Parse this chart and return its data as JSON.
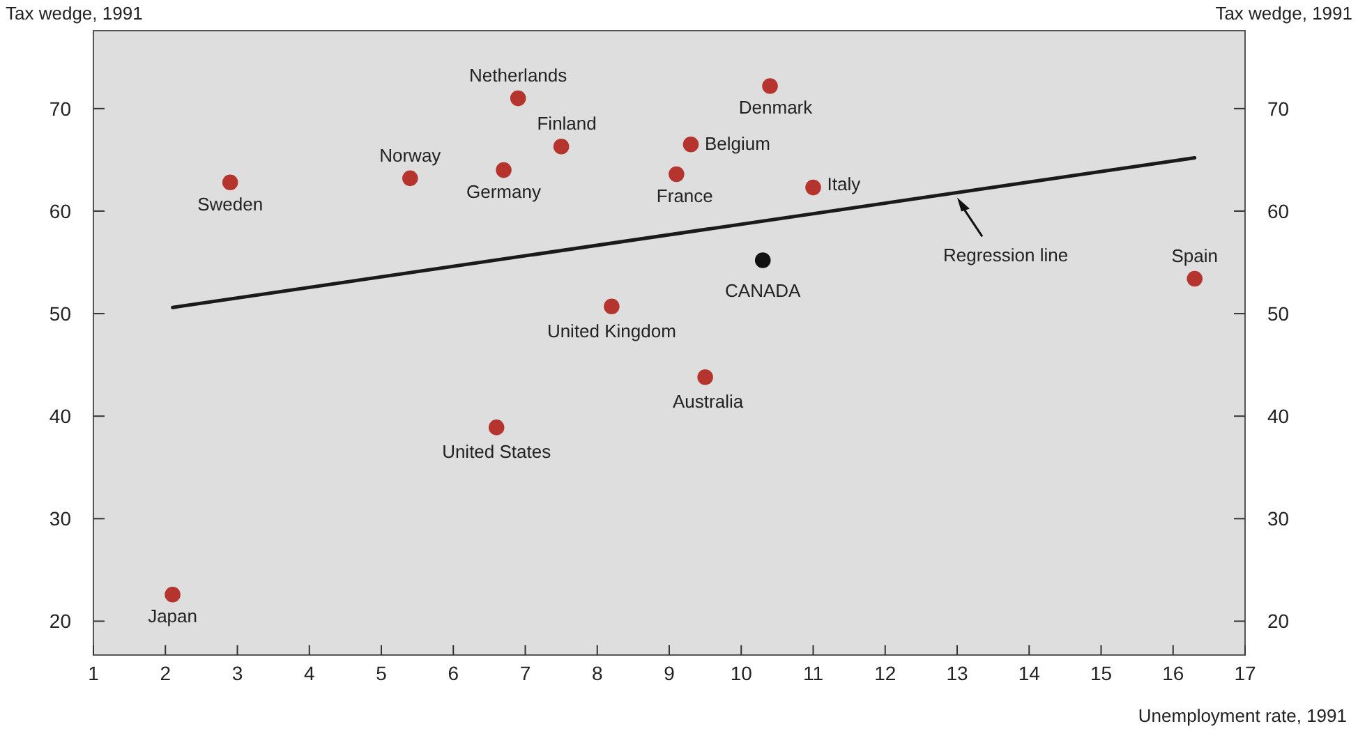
{
  "chart_data": {
    "type": "scatter",
    "xlabel": "Unemployment rate, 1991",
    "ylabel": "Tax wedge, 1991",
    "y2label": "Tax wedge, 1991",
    "xlim": [
      1,
      17
    ],
    "xticks": [
      1,
      2,
      3,
      4,
      5,
      6,
      7,
      8,
      9,
      10,
      11,
      12,
      13,
      14,
      15,
      16,
      17
    ],
    "ylim": [
      16.7,
      77.6
    ],
    "yticks": [
      20,
      30,
      40,
      50,
      60,
      70
    ],
    "y2lim": [
      16.7,
      77.6
    ],
    "y2ticks": [
      20,
      30,
      40,
      50,
      60,
      70
    ],
    "grid": false,
    "series": [
      {
        "marker": "circle",
        "x": [
          2.1,
          2.9,
          5.4,
          6.7,
          6.9,
          7.5,
          6.6,
          8.2,
          9.1,
          9.3,
          9.5,
          10.4,
          10.3,
          11.0,
          16.3
        ],
        "values": [
          22.6,
          62.8,
          63.2,
          64.0,
          71.0,
          66.3,
          38.9,
          50.7,
          63.6,
          66.5,
          43.8,
          72.2,
          55.2,
          62.3,
          53.4
        ],
        "colors": [
          "#b5342e",
          "#b5342e",
          "#b5342e",
          "#b5342e",
          "#b5342e",
          "#b5342e",
          "#b5342e",
          "#b5342e",
          "#b5342e",
          "#b5342e",
          "#b5342e",
          "#b5342e",
          "#111111",
          "#b5342e",
          "#b5342e"
        ]
      },
      {
        "type": "line",
        "x": [
          2.1,
          16.3
        ],
        "values": [
          50.6,
          65.2
        ],
        "color": "#1a1a1a"
      }
    ],
    "annotations": [
      {
        "text": "Japan",
        "x": 2.1,
        "y": 22.6
      },
      {
        "text": "Sweden",
        "x": 2.9,
        "y": 62.8
      },
      {
        "text": "Norway",
        "x": 5.4,
        "y": 63.2
      },
      {
        "text": "Germany",
        "x": 6.7,
        "y": 64.0
      },
      {
        "text": "Netherlands",
        "x": 6.9,
        "y": 71.0
      },
      {
        "text": "Finland",
        "x": 7.5,
        "y": 66.3
      },
      {
        "text": "United States",
        "x": 6.6,
        "y": 38.9
      },
      {
        "text": "United Kingdom",
        "x": 8.2,
        "y": 50.7
      },
      {
        "text": "France",
        "x": 9.1,
        "y": 63.6
      },
      {
        "text": "Belgium",
        "x": 9.3,
        "y": 66.5
      },
      {
        "text": "Australia",
        "x": 9.5,
        "y": 43.8
      },
      {
        "text": "Denmark",
        "x": 10.4,
        "y": 72.2
      },
      {
        "text": "CANADA",
        "x": 10.3,
        "y": 55.2
      },
      {
        "text": "Italy",
        "x": 11.0,
        "y": 62.3
      },
      {
        "text": "Spain",
        "x": 16.3,
        "y": 53.4
      },
      {
        "text": "Regression line",
        "x": 13.0,
        "y": 61.6
      }
    ]
  }
}
